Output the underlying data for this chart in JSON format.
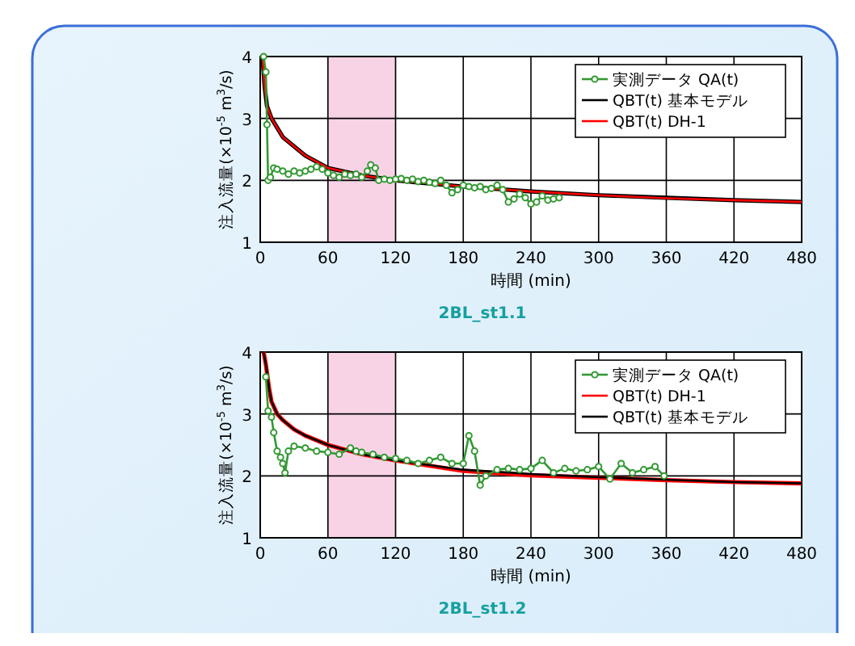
{
  "chart_data": [
    {
      "type": "line",
      "title": "2BL_st1.1",
      "xlabel": "時間 (min)",
      "ylabel": "注入流量(×10$^{-5}$ m$^{3}$/s)",
      "xlim": [
        0,
        480
      ],
      "xticks": [
        0,
        60,
        120,
        180,
        240,
        300,
        360,
        420,
        480
      ],
      "ylim": [
        1,
        4
      ],
      "yticks": [
        1,
        2,
        3,
        4
      ],
      "grid": true,
      "legend": "top right",
      "bands": [
        {
          "axis": "x",
          "from": 60,
          "to": 120,
          "color": "#f4b6d6"
        }
      ],
      "series": [
        {
          "name": "実測データ QA(t)",
          "color": "#339933",
          "marker": "circle",
          "x": [
            3,
            5,
            6,
            7,
            9,
            12,
            15,
            20,
            25,
            30,
            35,
            40,
            45,
            50,
            55,
            60,
            65,
            70,
            75,
            80,
            85,
            90,
            95,
            98,
            102,
            105,
            110,
            115,
            120,
            125,
            130,
            135,
            140,
            145,
            150,
            155,
            160,
            165,
            170,
            175,
            180,
            185,
            190,
            195,
            200,
            205,
            210,
            215,
            220,
            225,
            230,
            235,
            240,
            245,
            250,
            255,
            260,
            265
          ],
          "values": [
            4.0,
            3.75,
            2.9,
            2.0,
            2.05,
            2.2,
            2.18,
            2.15,
            2.1,
            2.15,
            2.12,
            2.15,
            2.18,
            2.22,
            2.18,
            2.12,
            2.08,
            2.05,
            2.1,
            2.08,
            2.1,
            2.05,
            2.15,
            2.25,
            2.2,
            2.0,
            2.02,
            2.0,
            2.02,
            2.03,
            2.0,
            2.02,
            1.98,
            2.0,
            1.97,
            1.95,
            2.0,
            1.92,
            1.8,
            1.85,
            1.92,
            1.9,
            1.88,
            1.9,
            1.85,
            1.87,
            1.92,
            1.85,
            1.65,
            1.7,
            1.78,
            1.72,
            1.62,
            1.65,
            1.75,
            1.68,
            1.7,
            1.72
          ]
        },
        {
          "name": "QBT(t) 基本モデル",
          "color": "#000000",
          "marker": "none",
          "x": [
            2,
            4,
            6,
            10,
            15,
            20,
            30,
            40,
            60,
            90,
            120,
            180,
            240,
            300,
            360,
            420,
            480
          ],
          "values": [
            4.0,
            3.5,
            3.2,
            3.0,
            2.85,
            2.7,
            2.55,
            2.4,
            2.2,
            2.08,
            2.0,
            1.9,
            1.82,
            1.76,
            1.72,
            1.68,
            1.65
          ]
        },
        {
          "name": "QBT(t) DH-1",
          "color": "#ff0000",
          "marker": "none",
          "x": [
            2,
            4,
            6,
            10,
            15,
            20,
            30,
            40,
            60,
            90,
            120,
            180,
            240,
            300,
            360,
            420,
            480
          ],
          "values": [
            4.0,
            3.5,
            3.2,
            3.0,
            2.85,
            2.7,
            2.55,
            2.4,
            2.2,
            2.08,
            2.0,
            1.9,
            1.82,
            1.76,
            1.71,
            1.68,
            1.65
          ]
        }
      ]
    },
    {
      "type": "line",
      "title": "2BL_st1.2",
      "xlabel": "時間 (min)",
      "ylabel": "注入流量(×10$^{-5}$ m$^{3}$/s)",
      "xlim": [
        0,
        480
      ],
      "xticks": [
        0,
        60,
        120,
        180,
        240,
        300,
        360,
        420,
        480
      ],
      "ylim": [
        1,
        4
      ],
      "yticks": [
        1,
        2,
        3,
        4
      ],
      "grid": true,
      "legend": "top right",
      "bands": [
        {
          "axis": "x",
          "from": 60,
          "to": 120,
          "color": "#f4b6d6"
        }
      ],
      "series": [
        {
          "name": "実測データ QA(t)",
          "color": "#339933",
          "marker": "circle",
          "x": [
            5,
            7,
            10,
            12,
            15,
            18,
            20,
            22,
            25,
            30,
            40,
            50,
            60,
            70,
            80,
            85,
            90,
            100,
            110,
            120,
            130,
            140,
            150,
            160,
            170,
            180,
            185,
            190,
            195,
            200,
            210,
            220,
            230,
            240,
            250,
            260,
            270,
            280,
            290,
            300,
            310,
            320,
            330,
            340,
            350,
            358
          ],
          "values": [
            3.6,
            3.05,
            2.95,
            2.7,
            2.4,
            2.3,
            2.2,
            2.05,
            2.4,
            2.48,
            2.45,
            2.4,
            2.38,
            2.35,
            2.45,
            2.4,
            2.38,
            2.35,
            2.3,
            2.28,
            2.25,
            2.2,
            2.25,
            2.3,
            2.2,
            2.2,
            2.65,
            2.4,
            1.85,
            2.0,
            2.1,
            2.12,
            2.1,
            2.12,
            2.25,
            2.05,
            2.12,
            2.08,
            2.1,
            2.15,
            1.95,
            2.2,
            2.05,
            2.1,
            2.15,
            2.0
          ]
        },
        {
          "name": "QBT(t) DH-1",
          "color": "#ff0000",
          "marker": "none",
          "x": [
            3,
            5,
            8,
            10,
            15,
            20,
            30,
            40,
            60,
            90,
            120,
            180,
            240,
            300,
            360,
            420,
            480
          ],
          "values": [
            4.0,
            3.8,
            3.4,
            3.2,
            3.0,
            2.9,
            2.75,
            2.65,
            2.5,
            2.35,
            2.25,
            2.08,
            2.01,
            1.97,
            1.93,
            1.9,
            1.88
          ]
        },
        {
          "name": "QBT(t) 基本モデル",
          "color": "#000000",
          "marker": "none",
          "x": [
            3,
            5,
            8,
            10,
            15,
            20,
            30,
            40,
            60,
            90,
            120,
            180,
            240,
            300,
            360,
            420,
            480
          ],
          "values": [
            4.0,
            3.8,
            3.4,
            3.2,
            3.0,
            2.9,
            2.75,
            2.65,
            2.5,
            2.35,
            2.25,
            2.1,
            2.03,
            1.98,
            1.94,
            1.9,
            1.88
          ]
        }
      ]
    }
  ]
}
